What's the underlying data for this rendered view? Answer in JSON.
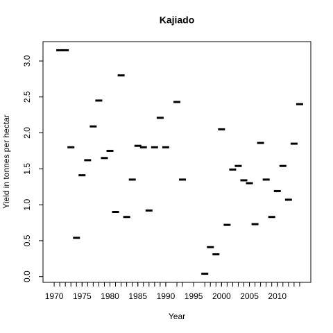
{
  "chart_data": {
    "type": "scatter",
    "title": "Kajiado",
    "x_label": "Year",
    "y_label": "Yield in tonnes per hectar",
    "x": [
      1971,
      1972,
      1973,
      1974,
      1975,
      1976,
      1977,
      1978,
      1979,
      1980,
      1981,
      1982,
      1983,
      1984,
      1985,
      1986,
      1987,
      1988,
      1989,
      1990,
      1992,
      1993,
      1997,
      1998,
      1999,
      2000,
      2001,
      2002,
      2003,
      2004,
      2005,
      2006,
      2007,
      2008,
      2009,
      2010,
      2011,
      2012,
      2013,
      2014
    ],
    "values": [
      3.15,
      3.15,
      1.8,
      0.54,
      1.41,
      1.62,
      2.09,
      2.45,
      1.65,
      1.75,
      0.9,
      2.8,
      0.83,
      1.35,
      1.82,
      1.8,
      0.92,
      1.8,
      2.21,
      1.8,
      2.43,
      1.35,
      0.04,
      0.41,
      0.31,
      2.05,
      0.72,
      1.49,
      1.54,
      1.34,
      1.3,
      0.73,
      1.86,
      1.35,
      0.83,
      1.19,
      1.54,
      1.07,
      1.85,
      2.4
    ],
    "color": "#000000",
    "xlim": [
      1968,
      2016
    ],
    "xticks": [
      1970,
      1975,
      1980,
      1985,
      1990,
      1995,
      2000,
      2005,
      2010
    ],
    "ylim": [
      -0.08,
      3.27
    ],
    "yticks": [
      {
        "value": 0,
        "label": "0.0"
      },
      0.5,
      {
        "value": 1,
        "label": "1.0"
      },
      1.5,
      {
        "value": 2,
        "label": "2.0"
      },
      2.5,
      {
        "value": 3,
        "label": "3.0"
      }
    ]
  }
}
